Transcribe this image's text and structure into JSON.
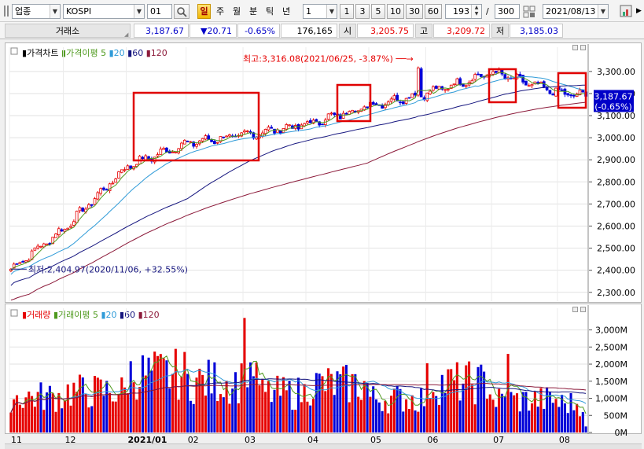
{
  "toolbar": {
    "market_type": "업종",
    "index_code": "KOSPI",
    "count_value": "01",
    "period_buttons": [
      "일",
      "주",
      "월",
      "분",
      "틱",
      "년"
    ],
    "active_period_index": 0,
    "unit_value": "1",
    "interval_buttons": [
      "1",
      "3",
      "5",
      "10",
      "30",
      "60"
    ],
    "view_count": "193",
    "separator": "/",
    "total_count": "300",
    "date_value": "2021/08/13"
  },
  "quote_bar": {
    "exchange_label": "거래소",
    "current_price": "3,187.67",
    "change": "▼20.71",
    "change_rate": "-0.65%",
    "volume": "176,165",
    "open_label": "시",
    "open": "3,205.75",
    "high_label": "고",
    "high": "3,209.72",
    "low_label": "저",
    "low": "3,185.03"
  },
  "colors": {
    "up": "#e60000",
    "down": "#0000d8",
    "ma5": "#4f9a1e",
    "ma20": "#2f9bd8",
    "ma60": "#16167f",
    "ma120": "#8c1a3a",
    "vol_ma20": "#2f9bd8",
    "vol_ma60": "#16167f",
    "vol_ma120": "#8c1a3a",
    "highlight_box": "#e00000"
  },
  "price_panel": {
    "legend": [
      {
        "text": "가격차트",
        "marker": "#000000"
      },
      {
        "text": "가격이평 5",
        "marker": "#4f9a1e"
      },
      {
        "text": "20",
        "marker": "#2f9bd8"
      },
      {
        "text": "60",
        "marker": "#16167f"
      },
      {
        "text": "120",
        "marker": "#8c1a3a"
      }
    ],
    "max_annotation": "최고:3,316.08(2021/06/25, -3.87%)",
    "min_annotation": "최저:2,404.97(2020/11/06, +32.55%)",
    "last_price_tag": "3,187.67",
    "last_change_tag": "(-0.65%)"
  },
  "volume_panel": {
    "legend": [
      {
        "text": "거래량",
        "marker": "#e60000"
      },
      {
        "text": "거래이평 5",
        "marker": "#4f9a1e"
      },
      {
        "text": "20",
        "marker": "#2f9bd8"
      },
      {
        "text": "60",
        "marker": "#16167f"
      },
      {
        "text": "120",
        "marker": "#8c1a3a"
      }
    ]
  },
  "chart_data": [
    {
      "type": "candlestick",
      "title": "가격차트",
      "x_labels": [
        "11",
        "12",
        "2021/01",
        "02",
        "03",
        "04",
        "05",
        "06",
        "07",
        "08"
      ],
      "y_ticks": [
        "3,300.00",
        "3,200.00",
        "3,100.00",
        "3,000.00",
        "2,900.00",
        "2,800.00",
        "2,700.00",
        "2,600.00",
        "2,500.00",
        "2,400.00",
        "2,300.00"
      ],
      "ylim": [
        2260,
        3360
      ],
      "max": {
        "value": 3316.08,
        "date": "2021/06/25"
      },
      "min": {
        "value": 2404.97,
        "date": "2020/11/06"
      },
      "monthly_closes_approx": [
        {
          "x": "2020/11",
          "y": 2591
        },
        {
          "x": "2020/12",
          "y": 2873
        },
        {
          "x": "2021/01",
          "y": 2976
        },
        {
          "x": "2021/02",
          "y": 3012
        },
        {
          "x": "2021/03",
          "y": 3061
        },
        {
          "x": "2021/04",
          "y": 3147
        },
        {
          "x": "2021/05",
          "y": 3203
        },
        {
          "x": "2021/06",
          "y": 3296
        },
        {
          "x": "2021/07",
          "y": 3202
        },
        {
          "x": "2021/08",
          "y": 3187.67
        }
      ],
      "series": [
        {
          "name": "5"
        },
        {
          "name": "20"
        },
        {
          "name": "60"
        },
        {
          "name": "120"
        }
      ]
    },
    {
      "type": "bar",
      "title": "거래량",
      "y_ticks": [
        "3,000M",
        "2,500M",
        "2,000M",
        "1,500M",
        "1,000M",
        "500M",
        "0M"
      ],
      "ylim": [
        0,
        3450
      ],
      "monthly_volume_approx": [
        {
          "x": "2020/11",
          "y": 1050
        },
        {
          "x": "2020/12",
          "y": 1200
        },
        {
          "x": "2021/01",
          "y": 1700
        },
        {
          "x": "2021/02",
          "y": 1500
        },
        {
          "x": "2021/03",
          "y": 1150
        },
        {
          "x": "2021/04",
          "y": 1400
        },
        {
          "x": "2021/05",
          "y": 1000
        },
        {
          "x": "2021/06",
          "y": 1450
        },
        {
          "x": "2021/07",
          "y": 950
        },
        {
          "x": "2021/08",
          "y": 850
        }
      ]
    }
  ]
}
